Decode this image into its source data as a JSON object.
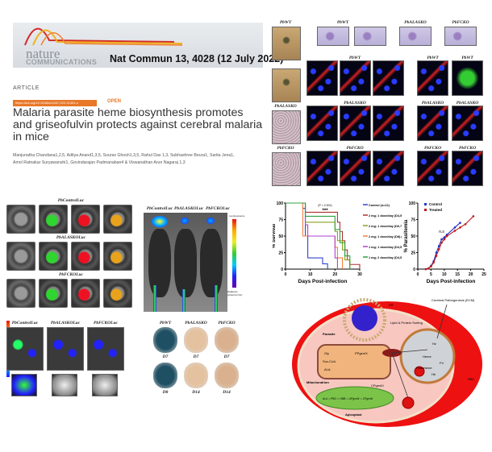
{
  "header": {
    "journal_line1": "nature",
    "journal_line2": "COMMUNICATIONS",
    "citation": "Nat Commun 13, 4028 (12 July 2022)"
  },
  "article": {
    "type": "ARTICLE",
    "doi": "https://doi.org/10.1038/s41467-022-31491-z",
    "access": "OPEN",
    "title": "Malaria parasite heme biosynthesis promotes and griseofulvin protects against cerebral malaria in mice",
    "authors_line1": "Manjunatha Chandana1,2,5, Aditya Anand1,3,5, Sourav Ghosh1,3,5, Rahul Das 1,3, Subhashree Beura1, Sarita Jena1,",
    "authors_line2": "Amol Ratnakar Suryawanshi1, Govindarajan Padmanaban4 & Viswanathan Arun Nagaraj 1,3"
  },
  "histology": {
    "strains": [
      "PbWT",
      "PbALASKO",
      "PbFCKO"
    ]
  },
  "cells": {
    "rows": [
      "PbControlLuc",
      "PbALASKOLuc",
      "PbFCKOLuc"
    ]
  },
  "imaging": {
    "mice": [
      "PbControlLuc",
      "PbALASKOLuc",
      "PbFCKOLuc"
    ],
    "scale_top": "Luminescence",
    "scale_bottom": "Radiance (p/sec/cm²/sr)"
  },
  "organs": {
    "groups": [
      "PbControlLuc",
      "PbALASKOLuc",
      "PbFCKOLuc"
    ],
    "labels": [
      "B",
      "H",
      "Lu",
      "S",
      "Li"
    ]
  },
  "brains": {
    "groups": [
      "PbWT",
      "PbALASKO",
      "PbFCKO"
    ],
    "days_top": [
      "D7",
      "D7",
      "D7"
    ],
    "days_bottom": [
      "D8",
      "D14",
      "D14"
    ],
    "colors": [
      "#1f4f63",
      "#e4c2a0",
      "#d9b18e"
    ]
  },
  "chart_data": [
    {
      "type": "line",
      "xlabel": "Days Post-infection",
      "ylabel": "% Survival",
      "xlim": [
        0,
        30
      ],
      "ylim": [
        0,
        100
      ],
      "xticks": [
        0,
        10,
        20,
        30
      ],
      "yticks": [
        0,
        25,
        50,
        75,
        100
      ],
      "annotation": "(P < 0.001)",
      "significance": "***",
      "legend": "right",
      "series": [
        {
          "name": "Control (n=12)",
          "color": "#3344cc",
          "points": [
            [
              0,
              100
            ],
            [
              7,
              100
            ],
            [
              7,
              92
            ],
            [
              8,
              92
            ],
            [
              8,
              50
            ],
            [
              9,
              50
            ],
            [
              9,
              17
            ],
            [
              15,
              17
            ],
            [
              15,
              8
            ],
            [
              17,
              8
            ],
            [
              17,
              0
            ]
          ]
        },
        {
          "name": "2 mg; 1 dose/day (D4,5,6,7,8) (n=14)",
          "color": "#b03030",
          "points": [
            [
              0,
              100
            ],
            [
              8,
              100
            ],
            [
              8,
              86
            ],
            [
              21,
              86
            ],
            [
              21,
              71
            ],
            [
              22,
              71
            ],
            [
              22,
              57
            ],
            [
              23,
              57
            ],
            [
              23,
              43
            ],
            [
              24,
              43
            ],
            [
              24,
              29
            ],
            [
              25,
              29
            ],
            [
              25,
              14
            ],
            [
              26,
              14
            ],
            [
              26,
              7
            ],
            [
              30,
              7
            ],
            [
              30,
              0
            ]
          ]
        },
        {
          "name": "2 mg; 1 dose/day (D6,7,8) (n=7)",
          "color": "#8aa020",
          "points": [
            [
              0,
              100
            ],
            [
              8,
              100
            ],
            [
              8,
              71
            ],
            [
              20,
              71
            ],
            [
              20,
              57
            ],
            [
              21,
              57
            ],
            [
              21,
              43
            ],
            [
              23,
              43
            ],
            [
              23,
              29
            ],
            [
              24,
              29
            ],
            [
              24,
              14
            ],
            [
              26,
              14
            ],
            [
              26,
              0
            ]
          ]
        },
        {
          "name": "2 mg; 1 dose/day (D8) (n=6)",
          "color": "#f08040",
          "points": [
            [
              0,
              100
            ],
            [
              7,
              100
            ],
            [
              7,
              50
            ],
            [
              20,
              50
            ],
            [
              20,
              33
            ],
            [
              21,
              33
            ],
            [
              21,
              17
            ],
            [
              23,
              17
            ],
            [
              23,
              0
            ]
          ]
        },
        {
          "name": "1 mg; 1 dose/day (D4,5,6,7,8) (n=6)",
          "color": "#b040d0",
          "points": [
            [
              0,
              100
            ],
            [
              8,
              100
            ],
            [
              8,
              67
            ],
            [
              9,
              67
            ],
            [
              9,
              50
            ],
            [
              20,
              50
            ],
            [
              20,
              17
            ],
            [
              21,
              17
            ],
            [
              21,
              0
            ]
          ]
        },
        {
          "name": "1 mg; 2 dose/day (D4,5,6,7,8) (n=10)",
          "color": "#30a040",
          "points": [
            [
              0,
              100
            ],
            [
              8,
              100
            ],
            [
              8,
              80
            ],
            [
              20,
              80
            ],
            [
              20,
              60
            ],
            [
              22,
              60
            ],
            [
              22,
              40
            ],
            [
              24,
              40
            ],
            [
              24,
              20
            ],
            [
              26,
              20
            ],
            [
              26,
              0
            ]
          ]
        }
      ]
    },
    {
      "type": "line",
      "xlabel": "Days Post-infection",
      "ylabel": "% Parasitemia",
      "xlim": [
        0,
        25
      ],
      "ylim": [
        0,
        100
      ],
      "xticks": [
        0,
        5,
        10,
        15,
        20,
        25
      ],
      "yticks": [
        0,
        25,
        50,
        75,
        100
      ],
      "annotation": "n.s",
      "legend": "top-left",
      "series": [
        {
          "name": "Control",
          "color": "#2233cc",
          "points": [
            [
              3,
              0
            ],
            [
              4,
              1
            ],
            [
              5,
              5
            ],
            [
              6,
              12
            ],
            [
              7,
              25
            ],
            [
              8,
              35
            ],
            [
              9,
              45
            ],
            [
              10,
              48
            ],
            [
              11,
              52
            ],
            [
              14,
              63
            ],
            [
              16,
              70
            ]
          ]
        },
        {
          "name": "Treated",
          "color": "#c01818",
          "points": [
            [
              3,
              0
            ],
            [
              4,
              1
            ],
            [
              5,
              4
            ],
            [
              6,
              10
            ],
            [
              7,
              20
            ],
            [
              8,
              30
            ],
            [
              9,
              40
            ],
            [
              10,
              45
            ],
            [
              11,
              50
            ],
            [
              14,
              58
            ],
            [
              16,
              63
            ],
            [
              18,
              68
            ],
            [
              21,
              80
            ]
          ]
        }
      ]
    }
  ],
  "diagram": {
    "er": "ER",
    "parasite": "Parasite",
    "mito": "Mitochondrion",
    "apico": "Apicoplast",
    "fv": "FV",
    "rbc": "RBC",
    "ecm": "Cerebral Pathogenesis (ECM)",
    "lipid": "Lipid & Protein Sorting",
    "hz": "Hz",
    "heme": "Heme",
    "proto": "Protoheme",
    "hb": "Hb",
    "ala": "ALA",
    "pbg": "PBG",
    "ppix": "PPgenIX",
    "cpgen": "CPgenIII",
    "succ": "Suc-CoA",
    "gly": "Gly",
    "alas": "ALA ⇒ PBG ⇒ HMB ⇒ UPgenIII ⇒ CPgenIII"
  }
}
